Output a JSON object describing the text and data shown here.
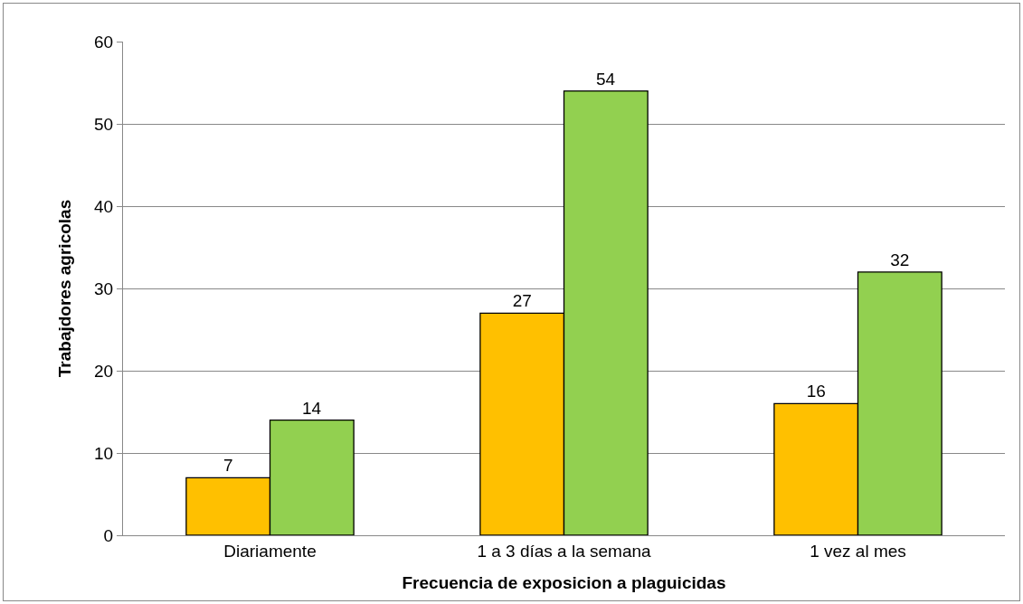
{
  "chart_data": {
    "type": "bar",
    "xlabel": "Frecuencia de exposicion a plaguicidas",
    "ylabel": "Trabajdores agricolas",
    "categories": [
      "Diariamente",
      "1 a 3 días a la semana",
      "1 vez al mes"
    ],
    "series": [
      {
        "color": "#ffc000",
        "values": [
          7,
          27,
          16
        ]
      },
      {
        "color": "#92d050",
        "values": [
          14,
          54,
          32
        ]
      }
    ],
    "ylim": [
      0,
      60
    ],
    "yticks": [
      0,
      10,
      20,
      30,
      40,
      50,
      60
    ],
    "grid": "y",
    "data_labels": true
  }
}
